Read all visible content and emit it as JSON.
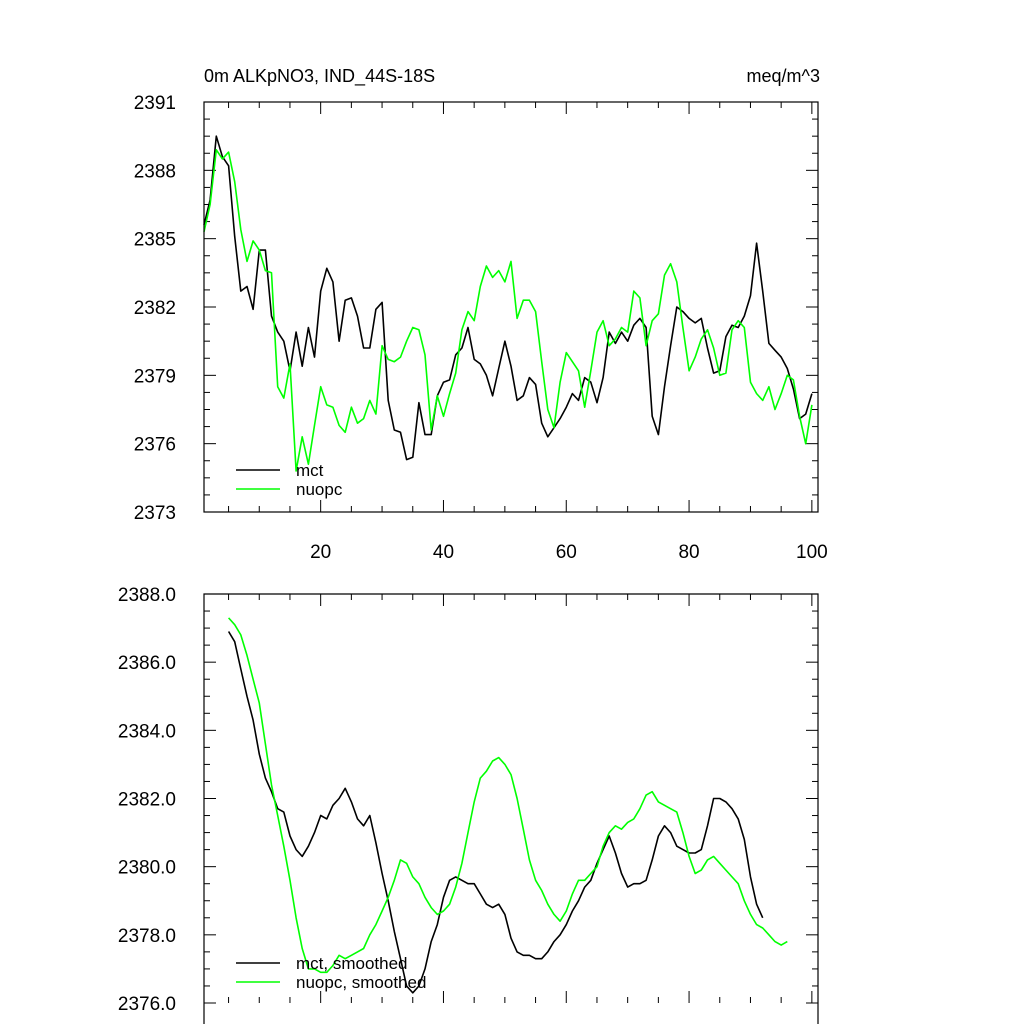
{
  "chart_data": [
    {
      "type": "line",
      "title_left": "0m ALKpNO3, IND_44S-18S",
      "title_right": "meq/m^3",
      "xlim": [
        1,
        101
      ],
      "ylim": [
        2373,
        2391
      ],
      "xticks": [
        20,
        40,
        60,
        80,
        100
      ],
      "xtick_labels": [
        "20",
        "40",
        "60",
        "80",
        "100"
      ],
      "yticks": [
        2373,
        2376,
        2379,
        2382,
        2385,
        2388,
        2391
      ],
      "ytick_labels": [
        "2373",
        "2376",
        "2379",
        "2382",
        "2385",
        "2388",
        "2391"
      ],
      "legend_position": "bottom-left",
      "colors": {
        "mct": "#000000",
        "nuopc": "#00ff00"
      },
      "x_start": 1,
      "series": [
        {
          "name": "mct",
          "color": "#000000",
          "values": [
            2385.6,
            2386.7,
            2389.5,
            2388.6,
            2388.2,
            2385.1,
            2382.7,
            2382.9,
            2381.9,
            2384.5,
            2384.5,
            2381.6,
            2380.9,
            2380.5,
            2379.2,
            2380.9,
            2379.4,
            2381.1,
            2379.8,
            2382.7,
            2383.7,
            2383.1,
            2380.5,
            2382.3,
            2382.4,
            2381.6,
            2380.2,
            2380.2,
            2381.9,
            2382.2,
            2377.9,
            2376.6,
            2376.5,
            2375.3,
            2375.4,
            2377.8,
            2376.4,
            2376.4,
            2378.1,
            2378.7,
            2378.8,
            2379.9,
            2380.2,
            2381.1,
            2379.7,
            2379.5,
            2379.0,
            2378.1,
            2379.3,
            2380.5,
            2379.4,
            2377.9,
            2378.1,
            2378.9,
            2378.6,
            2376.9,
            2376.3,
            2376.7,
            2377.1,
            2377.6,
            2378.2,
            2377.9,
            2378.9,
            2378.7,
            2377.8,
            2378.9,
            2380.9,
            2380.4,
            2380.9,
            2380.5,
            2381.2,
            2381.5,
            2381.1,
            2377.2,
            2376.4,
            2378.5,
            2380.3,
            2382.0,
            2381.8,
            2381.5,
            2381.3,
            2381.5,
            2380.2,
            2379.1,
            2379.2,
            2380.7,
            2381.2,
            2381.1,
            2381.6,
            2382.5,
            2384.8,
            2382.7,
            2380.4,
            2380.1,
            2379.8,
            2379.3,
            2378.4,
            2377.1,
            2377.3,
            2378.2
          ]
        },
        {
          "name": "nuopc",
          "color": "#00ff00",
          "values": [
            2385.3,
            2386.5,
            2388.9,
            2388.5,
            2388.8,
            2387.5,
            2385.4,
            2384.0,
            2384.9,
            2384.5,
            2383.6,
            2383.5,
            2378.5,
            2378.0,
            2379.5,
            2374.8,
            2376.3,
            2375.1,
            2376.8,
            2378.5,
            2377.7,
            2377.6,
            2376.8,
            2376.5,
            2377.6,
            2376.9,
            2377.1,
            2377.9,
            2377.3,
            2380.3,
            2379.7,
            2379.6,
            2379.8,
            2380.5,
            2381.1,
            2381.0,
            2379.9,
            2376.6,
            2378.1,
            2377.2,
            2378.2,
            2379.1,
            2381.0,
            2381.8,
            2381.4,
            2382.9,
            2383.8,
            2383.3,
            2383.6,
            2383.1,
            2384.0,
            2381.5,
            2382.3,
            2382.3,
            2381.8,
            2379.6,
            2377.5,
            2376.7,
            2378.7,
            2380.0,
            2379.6,
            2379.2,
            2377.6,
            2379.2,
            2380.9,
            2381.4,
            2380.3,
            2380.6,
            2381.1,
            2380.9,
            2382.7,
            2382.4,
            2380.3,
            2381.4,
            2381.7,
            2383.4,
            2383.9,
            2383.1,
            2381.1,
            2379.2,
            2379.8,
            2380.6,
            2381.0,
            2380.2,
            2379.0,
            2379.1,
            2381.0,
            2381.4,
            2381.1,
            2378.7,
            2378.2,
            2377.9,
            2378.5,
            2377.5,
            2378.2,
            2379.0,
            2378.8,
            2377.2,
            2376.0,
            2377.7
          ]
        }
      ]
    },
    {
      "type": "line",
      "xlim": [
        1,
        101
      ],
      "ylim": [
        2376.0,
        2388.0
      ],
      "xticks": [
        20,
        40,
        60,
        80,
        100
      ],
      "yticks": [
        2376.0,
        2378.0,
        2380.0,
        2382.0,
        2384.0,
        2386.0,
        2388.0
      ],
      "ytick_labels": [
        "2376.0",
        "2378.0",
        "2380.0",
        "2382.0",
        "2384.0",
        "2386.0",
        "2388.0"
      ],
      "legend_position": "bottom-left",
      "colors": {
        "mct_smoothed": "#000000",
        "nuopc_smoothed": "#00ff00"
      },
      "x_start": 5,
      "series": [
        {
          "name": "mct, smoothed",
          "color": "#000000",
          "values": [
            2386.9,
            2386.6,
            2385.8,
            2385.0,
            2384.3,
            2383.3,
            2382.6,
            2382.2,
            2381.7,
            2381.6,
            2380.9,
            2380.5,
            2380.3,
            2380.6,
            2381.0,
            2381.5,
            2381.4,
            2381.8,
            2382.0,
            2382.3,
            2381.9,
            2381.4,
            2381.2,
            2381.5,
            2380.7,
            2379.8,
            2379.0,
            2378.1,
            2377.3,
            2376.5,
            2376.3,
            2376.5,
            2377.0,
            2377.8,
            2378.3,
            2379.1,
            2379.6,
            2379.7,
            2379.6,
            2379.5,
            2379.5,
            2379.2,
            2378.9,
            2378.8,
            2378.9,
            2378.6,
            2377.9,
            2377.5,
            2377.4,
            2377.4,
            2377.3,
            2377.3,
            2377.5,
            2377.8,
            2378.0,
            2378.3,
            2378.7,
            2379.0,
            2379.4,
            2379.6,
            2380.1,
            2380.5,
            2380.9,
            2380.4,
            2379.8,
            2379.4,
            2379.5,
            2379.5,
            2379.6,
            2380.2,
            2380.9,
            2381.2,
            2381.0,
            2380.6,
            2380.5,
            2380.4,
            2380.4,
            2380.5,
            2381.2,
            2382.0,
            2382.0,
            2381.9,
            2381.7,
            2381.4,
            2380.8,
            2379.7,
            2378.9,
            2378.5
          ]
        },
        {
          "name": "nuopc, smoothed",
          "color": "#00ff00",
          "values": [
            2387.3,
            2387.1,
            2386.8,
            2386.2,
            2385.5,
            2384.8,
            2383.6,
            2382.4,
            2381.5,
            2380.6,
            2379.6,
            2378.5,
            2377.6,
            2377.0,
            2377.0,
            2376.9,
            2376.9,
            2377.1,
            2377.4,
            2377.3,
            2377.4,
            2377.5,
            2377.6,
            2378.0,
            2378.3,
            2378.7,
            2379.1,
            2379.6,
            2380.2,
            2380.1,
            2379.7,
            2379.5,
            2379.1,
            2378.8,
            2378.6,
            2378.7,
            2378.9,
            2379.4,
            2380.1,
            2381.0,
            2381.9,
            2382.6,
            2382.8,
            2383.1,
            2383.2,
            2383.0,
            2382.7,
            2382.0,
            2381.1,
            2380.2,
            2379.6,
            2379.3,
            2378.9,
            2378.6,
            2378.4,
            2378.7,
            2379.2,
            2379.6,
            2379.6,
            2379.8,
            2380.0,
            2380.6,
            2381.0,
            2381.2,
            2381.1,
            2381.3,
            2381.4,
            2381.7,
            2382.1,
            2382.2,
            2381.9,
            2381.8,
            2381.7,
            2381.6,
            2381.0,
            2380.3,
            2379.8,
            2379.9,
            2380.2,
            2380.3,
            2380.1,
            2379.9,
            2379.7,
            2379.5,
            2379.0,
            2378.6,
            2378.3,
            2378.2,
            2378.0,
            2377.8,
            2377.7,
            2377.8
          ]
        }
      ]
    }
  ]
}
